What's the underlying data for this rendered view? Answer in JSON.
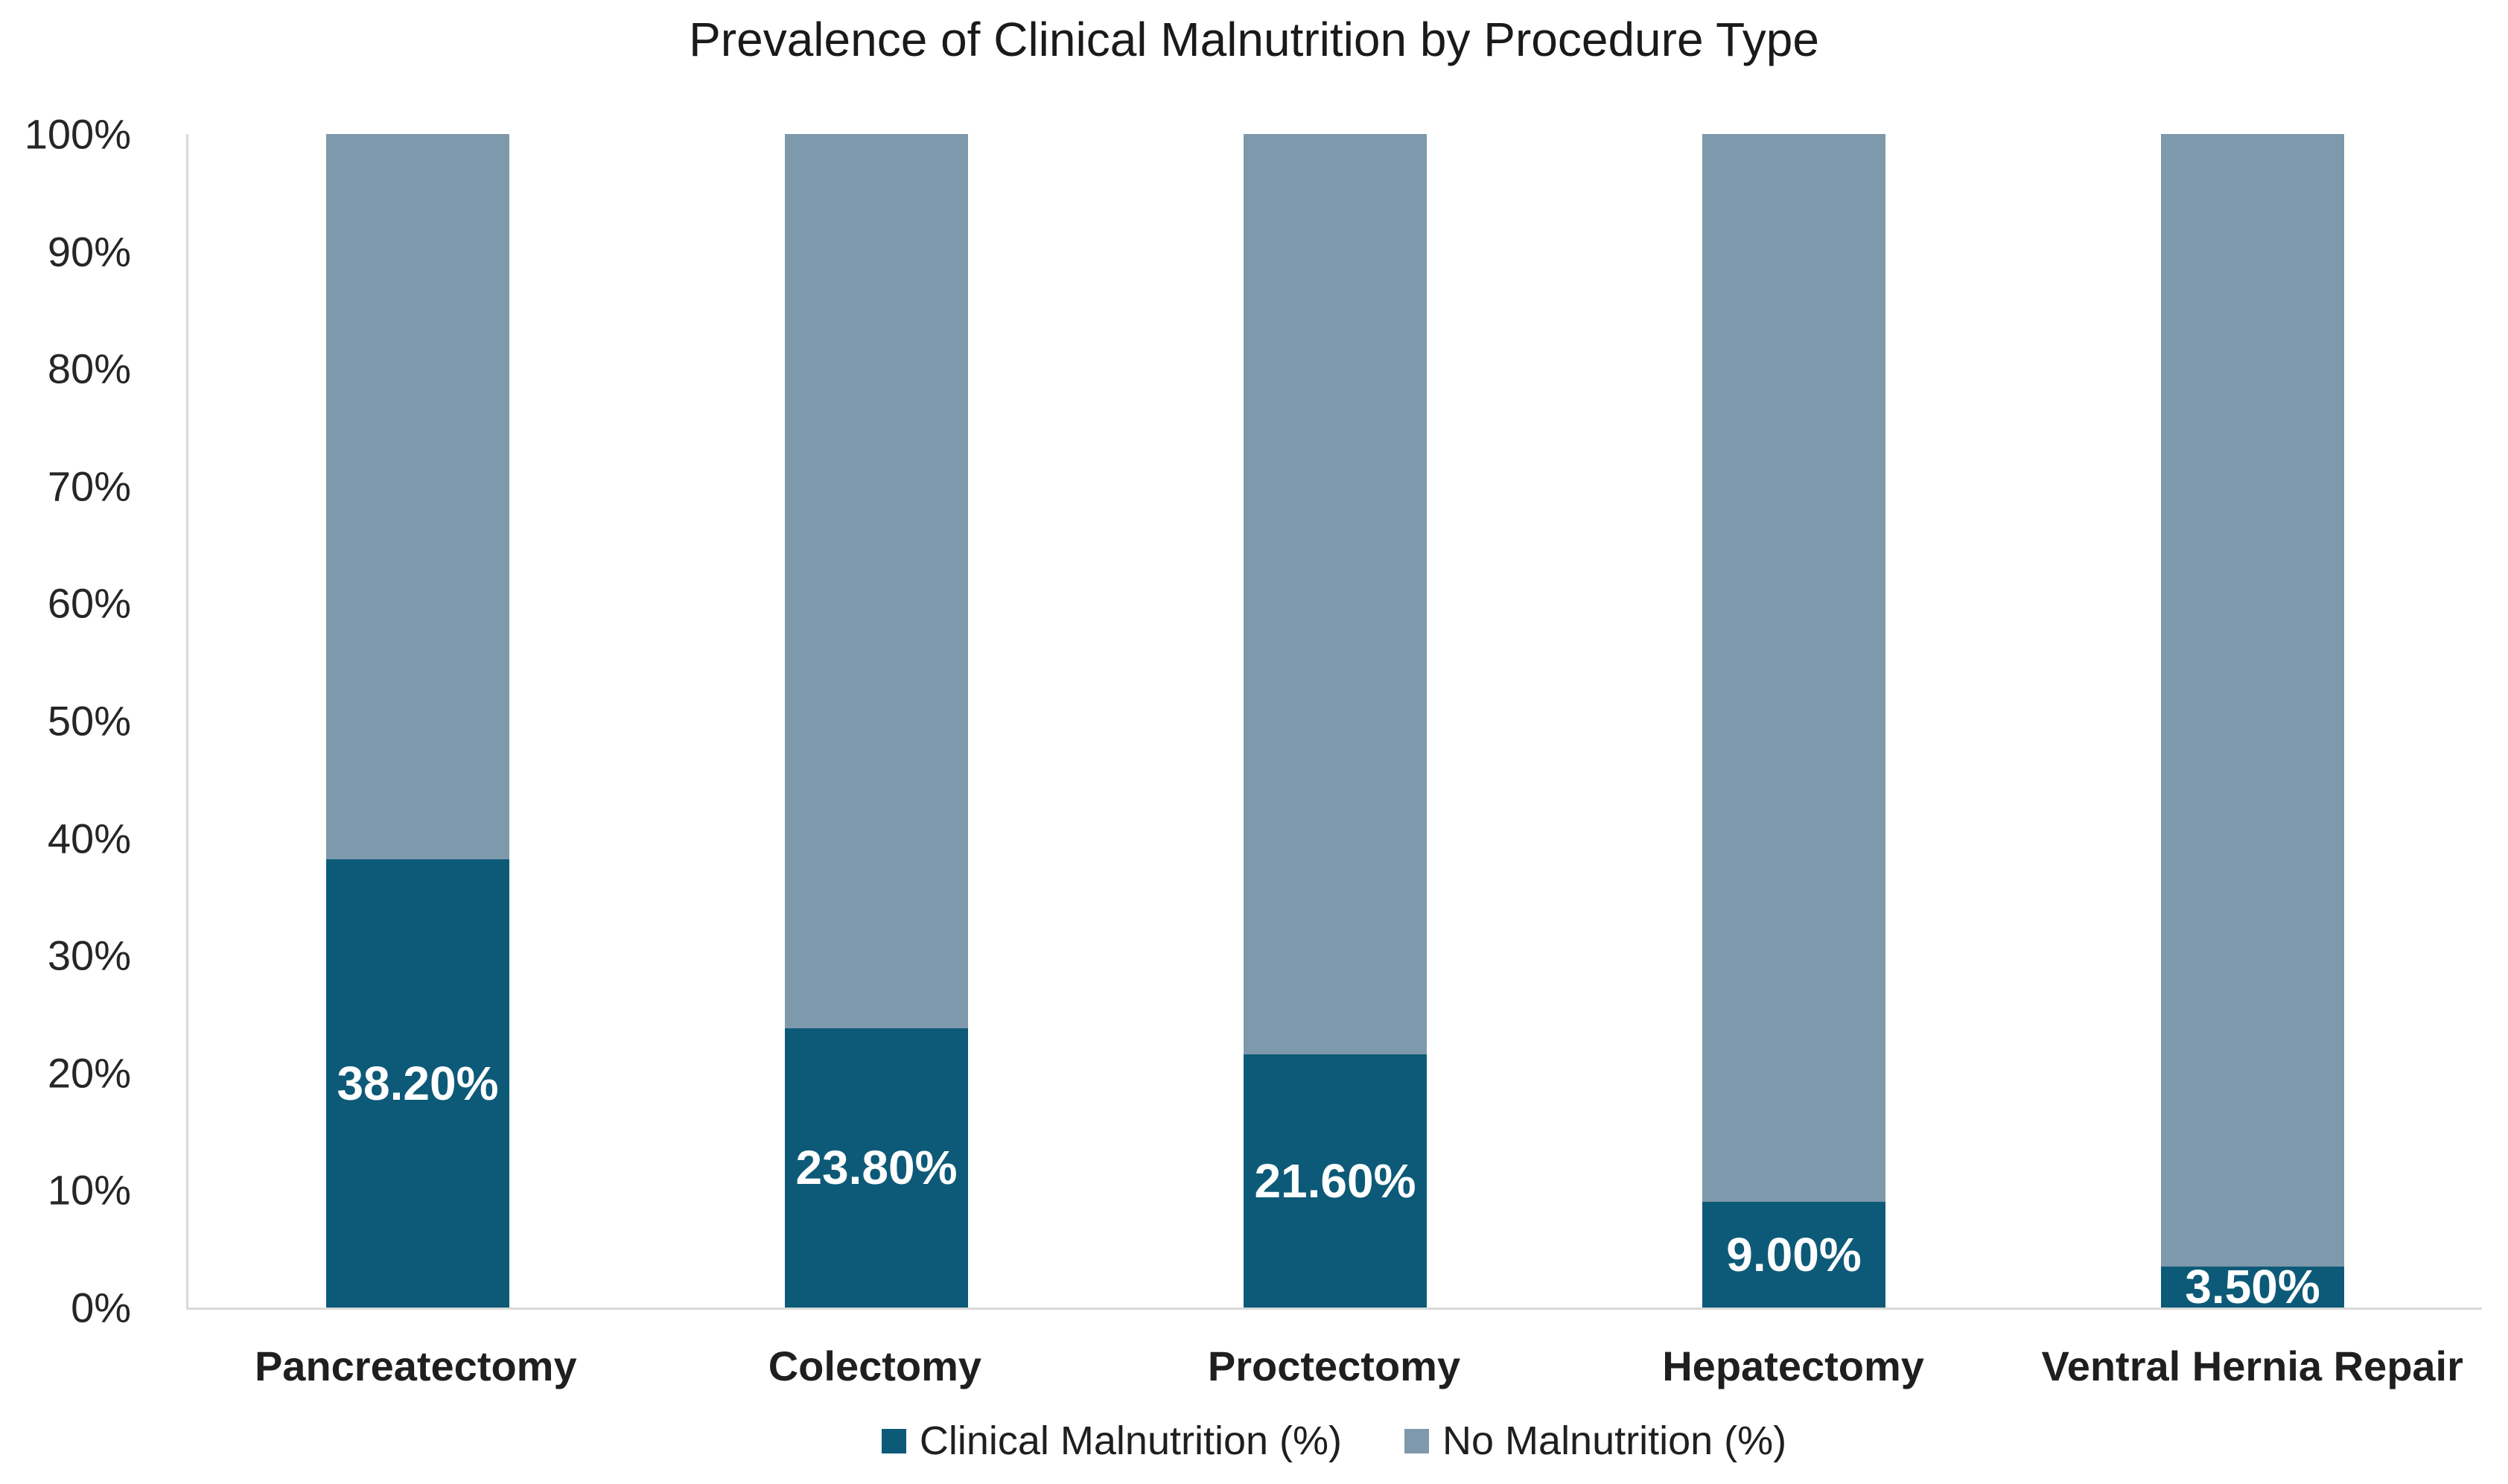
{
  "title": "Prevalence of Clinical Malnutrition by Procedure Type",
  "colors": {
    "clinical_malnutrition": "#0d5a78",
    "no_malnutrition": "#7e99ac",
    "axis_line": "#d9d9d9",
    "tick_text": "#262626",
    "bar_label_text": "#ffffff",
    "background": "#ffffff"
  },
  "y_axis": {
    "tick_labels": [
      "100%",
      "90%",
      "80%",
      "70%",
      "60%",
      "50%",
      "40%",
      "30%",
      "20%",
      "10%",
      "0%"
    ],
    "min": 0,
    "max": 100,
    "step": 10
  },
  "legend": {
    "items": [
      {
        "label": "Clinical Malnutrition (%)",
        "color_key": "clinical_malnutrition"
      },
      {
        "label": "No Malnutrition (%)",
        "color_key": "no_malnutrition"
      }
    ],
    "position": "bottom"
  },
  "chart_data": {
    "type": "bar",
    "stacked": true,
    "percent_stacked": true,
    "title": "Prevalence of Clinical Malnutrition by Procedure Type",
    "categories": [
      "Pancreatectomy",
      "Colectomy",
      "Proctectomy",
      "Hepatectomy",
      "Ventral Hernia Repair"
    ],
    "series": [
      {
        "name": "Clinical Malnutrition (%)",
        "color": "#0d5a78",
        "values": [
          38.2,
          23.8,
          21.6,
          9.0,
          3.5
        ],
        "data_labels": [
          "38.20%",
          "23.80%",
          "21.60%",
          "9.00%",
          "3.50%"
        ]
      },
      {
        "name": "No Malnutrition (%)",
        "color": "#7e99ac",
        "values": [
          61.8,
          76.2,
          78.4,
          91.0,
          96.5
        ],
        "data_labels": []
      }
    ],
    "xlabel": "",
    "ylabel": "",
    "ylim": [
      0,
      100
    ],
    "grid": false,
    "gridlines": "none",
    "legend_position": "bottom",
    "bar_gap_ratio": 0.6
  }
}
